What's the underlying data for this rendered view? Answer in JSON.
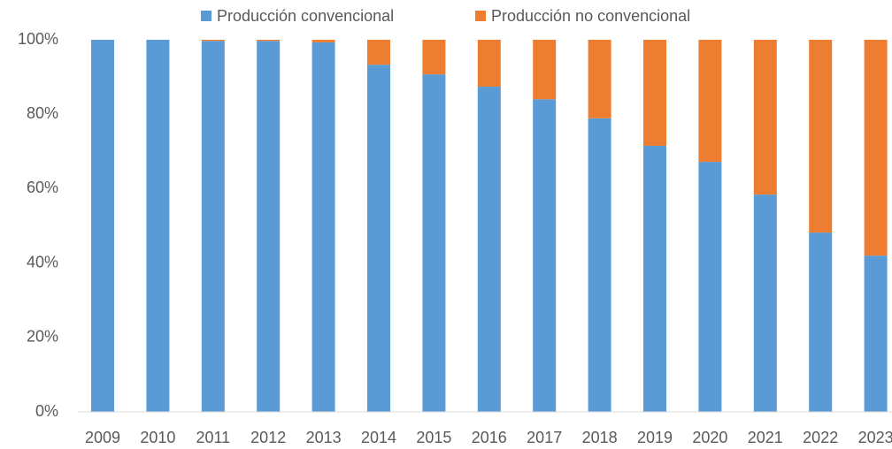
{
  "chart_data": {
    "type": "stacked_bar",
    "categories": [
      "2009",
      "2010",
      "2011",
      "2012",
      "2013",
      "2014",
      "2015",
      "2016",
      "2017",
      "2018",
      "2019",
      "2020",
      "2021",
      "2022",
      "2023"
    ],
    "series": [
      {
        "name": "Producción convencional",
        "color": "#5b9bd5",
        "values": [
          100,
          100,
          99.7,
          99.7,
          99.3,
          93.3,
          90.7,
          87.4,
          84,
          78.9,
          71.5,
          67.2,
          58.4,
          48.2,
          42
        ]
      },
      {
        "name": "Producción no convencional",
        "color": "#ed7d31",
        "values": [
          0,
          0,
          0.3,
          0.3,
          0.7,
          6.7,
          9.3,
          12.6,
          16,
          21.1,
          28.5,
          32.8,
          41.6,
          51.8,
          58
        ]
      }
    ],
    "ylim": [
      0,
      100
    ],
    "yticks": [
      {
        "value": 0,
        "label": "0%"
      },
      {
        "value": 20,
        "label": "20%"
      },
      {
        "value": 40,
        "label": "40%"
      },
      {
        "value": 60,
        "label": "60%"
      },
      {
        "value": 80,
        "label": "80%"
      },
      {
        "value": 100,
        "label": "100%"
      }
    ],
    "grid": false,
    "legend": "top"
  }
}
